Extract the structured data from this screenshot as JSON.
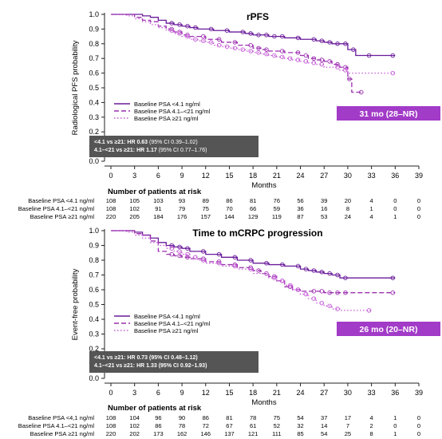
{
  "chart_data": [
    {
      "type": "line",
      "step": true,
      "title": "rPFS",
      "xlabel": "Months",
      "ylabel": "Radiological PFS probability",
      "xlim": [
        0,
        39
      ],
      "ylim": [
        0,
        1.0
      ],
      "xticks": [
        "0",
        "3",
        "6",
        "9",
        "12",
        "15",
        "18",
        "21",
        "24",
        "27",
        "30",
        "33",
        "36",
        "39"
      ],
      "yticks": [
        "0.0",
        "0.1",
        "0.2",
        "0.3",
        "0.4",
        "0.5",
        "0.6",
        "0.7",
        "0.8",
        "0.9",
        "1.0"
      ],
      "grid": false,
      "legend_position": "middle-left",
      "series": [
        {
          "name": "Baseline PSA <4.1 ng/ml",
          "style": "solid",
          "x": [
            0,
            4,
            5,
            6,
            7,
            8,
            9,
            10,
            11,
            13,
            15,
            17,
            18,
            19,
            20,
            21,
            22,
            24,
            26,
            27,
            28,
            29,
            30,
            31,
            33,
            36
          ],
          "y": [
            1.0,
            0.99,
            0.98,
            0.96,
            0.94,
            0.93,
            0.92,
            0.91,
            0.9,
            0.89,
            0.88,
            0.87,
            0.86,
            0.86,
            0.85,
            0.85,
            0.84,
            0.83,
            0.82,
            0.81,
            0.8,
            0.8,
            0.76,
            0.72,
            0.72,
            0.72
          ]
        },
        {
          "name": "Baseline PSA 4.1–<21 ng/ml",
          "style": "dashed",
          "x": [
            0,
            3,
            4,
            5,
            6,
            7,
            8,
            9,
            10,
            12,
            14,
            16,
            18,
            19,
            20,
            22,
            24,
            25,
            26,
            27,
            28,
            29,
            30,
            30.5,
            32
          ],
          "y": [
            1.0,
            0.98,
            0.96,
            0.95,
            0.92,
            0.9,
            0.88,
            0.86,
            0.85,
            0.83,
            0.81,
            0.79,
            0.77,
            0.76,
            0.75,
            0.74,
            0.72,
            0.7,
            0.69,
            0.68,
            0.66,
            0.64,
            0.56,
            0.47,
            0.47
          ]
        },
        {
          "name": "Baseline PSA ≥21 ng/ml",
          "style": "dotted",
          "x": [
            0,
            2,
            3,
            4,
            5,
            6,
            7,
            8,
            9,
            10,
            11,
            12,
            13,
            14,
            15,
            16,
            17,
            18,
            19,
            20,
            21,
            22,
            23,
            24,
            25,
            26,
            27,
            29,
            30,
            36
          ],
          "y": [
            1.0,
            0.99,
            0.97,
            0.95,
            0.93,
            0.91,
            0.89,
            0.87,
            0.85,
            0.83,
            0.82,
            0.81,
            0.79,
            0.78,
            0.77,
            0.76,
            0.75,
            0.74,
            0.73,
            0.72,
            0.71,
            0.7,
            0.69,
            0.68,
            0.67,
            0.66,
            0.64,
            0.62,
            0.6,
            0.6
          ]
        }
      ],
      "median_box": "31 mo (28–NR)",
      "hr_lines": [
        {
          "bold": "<4.1 vs ≥21: HR 0.63",
          "rest": " (95% CI 0.39–1.02)"
        },
        {
          "bold": "4.1–<21 vs ≥21: HR 1.17",
          "rest": " (95% CI 0.77–1.76)"
        }
      ],
      "risk_table": {
        "title": "Number of patients at risk",
        "rows": [
          {
            "label": "Baseline PSA <4.1 ng/ml",
            "values": [
              "108",
              "105",
              "103",
              "93",
              "89",
              "86",
              "81",
              "76",
              "56",
              "39",
              "20",
              "4",
              "0",
              "0"
            ]
          },
          {
            "label": "Baseline PSA 4.1–<21 ng/ml",
            "values": [
              "108",
              "102",
              "91",
              "79",
              "75",
              "70",
              "66",
              "59",
              "36",
              "16",
              "8",
              "1",
              "0",
              "0"
            ]
          },
          {
            "label": "Baseline PSA ≥21 ng/ml",
            "values": [
              "220",
              "205",
              "184",
              "176",
              "157",
              "144",
              "129",
              "119",
              "87",
              "53",
              "24",
              "4",
              "1",
              "0"
            ]
          }
        ]
      }
    },
    {
      "type": "line",
      "step": true,
      "title": "Time to mCRPC progression",
      "xlabel": "Months",
      "ylabel": "Event-free probability",
      "xlim": [
        0,
        39
      ],
      "ylim": [
        0,
        1.0
      ],
      "xticks": [
        "0",
        "3",
        "6",
        "9",
        "12",
        "15",
        "18",
        "21",
        "24",
        "27",
        "30",
        "33",
        "36",
        "39"
      ],
      "yticks": [
        "0.0",
        "0.1",
        "0.2",
        "0.3",
        "0.4",
        "0.5",
        "0.6",
        "0.7",
        "0.8",
        "0.9",
        "1.0"
      ],
      "grid": false,
      "legend_position": "middle-left",
      "series": [
        {
          "name": "Baseline PSA <4.1 ng/ml",
          "style": "solid",
          "x": [
            0,
            3,
            4,
            5,
            6,
            7,
            8,
            9,
            10,
            12,
            14,
            16,
            18,
            20,
            22,
            24,
            25,
            26,
            27,
            28,
            29,
            30,
            36
          ],
          "y": [
            1.0,
            0.99,
            0.97,
            0.95,
            0.92,
            0.9,
            0.89,
            0.88,
            0.86,
            0.84,
            0.82,
            0.8,
            0.78,
            0.77,
            0.76,
            0.74,
            0.73,
            0.72,
            0.71,
            0.7,
            0.68,
            0.68,
            0.68
          ]
        },
        {
          "name": "Baseline PSA 4.1–<21 ng/ml",
          "style": "dashed",
          "x": [
            0,
            3,
            4,
            5,
            6,
            7,
            8,
            9,
            10,
            12,
            14,
            16,
            18,
            19,
            20,
            21,
            22,
            23,
            24,
            26,
            27,
            28,
            29,
            30,
            36
          ],
          "y": [
            1.0,
            0.98,
            0.97,
            0.93,
            0.86,
            0.84,
            0.83,
            0.82,
            0.81,
            0.79,
            0.77,
            0.75,
            0.73,
            0.71,
            0.69,
            0.66,
            0.62,
            0.6,
            0.59,
            0.59,
            0.58,
            0.58,
            0.58,
            0.58,
            0.58
          ]
        },
        {
          "name": "Baseline PSA ≥21 ng/ml",
          "style": "dotted",
          "x": [
            0,
            2,
            3,
            4,
            5,
            6,
            7,
            8,
            9,
            10,
            11,
            12,
            14,
            16,
            18,
            20,
            21,
            22,
            23,
            24,
            25,
            26,
            27,
            28,
            29,
            33
          ],
          "y": [
            1.0,
            0.99,
            0.97,
            0.95,
            0.92,
            0.9,
            0.88,
            0.86,
            0.84,
            0.82,
            0.8,
            0.78,
            0.76,
            0.74,
            0.71,
            0.68,
            0.66,
            0.63,
            0.6,
            0.57,
            0.54,
            0.51,
            0.49,
            0.47,
            0.46,
            0.46
          ]
        }
      ],
      "median_box": "26 mo (20–NR)",
      "hr_lines": [
        {
          "bold": "<4.1 vs ≥21: HR 0.73 (95% CI 0.48–1.12)",
          "rest": ""
        },
        {
          "bold": "4.1–<21 vs ≥21: HR 1.33 (95% CI 0.92–1.93)",
          "rest": ""
        }
      ],
      "risk_table": {
        "title": "Number of patients at risk",
        "rows": [
          {
            "label": "Baseline PSA <4,1 ng/ml",
            "values": [
              "108",
              "104",
              "96",
              "90",
              "86",
              "81",
              "78",
              "75",
              "54",
              "37",
              "17",
              "4",
              "1",
              "0"
            ]
          },
          {
            "label": "Baseline PSA 4.1–<21 ng/ml",
            "values": [
              "108",
              "102",
              "86",
              "78",
              "72",
              "67",
              "61",
              "52",
              "32",
              "14",
              "7",
              "2",
              "0",
              "0"
            ]
          },
          {
            "label": "Baseline PSA ≥21 ng/ml",
            "values": [
              "220",
              "202",
              "173",
              "162",
              "146",
              "137",
              "121",
              "111",
              "85",
              "54",
              "25",
              "8",
              "1",
              "0"
            ]
          }
        ]
      }
    }
  ],
  "colors": {
    "series_dark": "#6a1b9a",
    "series_mid": "#9c2fb0",
    "series_light": "#c45ad6",
    "median_box_bg": "#a23bc7",
    "hr_box_bg": "#555555"
  }
}
